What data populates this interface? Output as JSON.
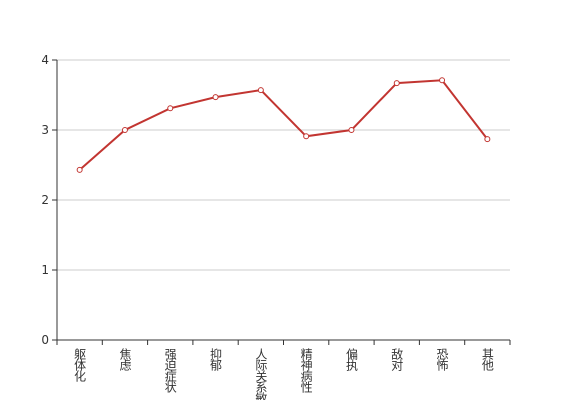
{
  "chart_data": {
    "type": "line",
    "categories": [
      "躯体化",
      "焦虑",
      "强迫症状",
      "抑郁",
      "人际关系敏感",
      "精神病性",
      "偏执",
      "敌对",
      "恐怖",
      "其他"
    ],
    "values": [
      2.43,
      3.0,
      3.31,
      3.47,
      3.57,
      2.91,
      3.0,
      3.67,
      3.71,
      2.87
    ],
    "color": "#c23531",
    "ylim": [
      0,
      4
    ],
    "yticks": [
      0,
      1,
      2,
      3,
      4
    ],
    "grid": true
  }
}
